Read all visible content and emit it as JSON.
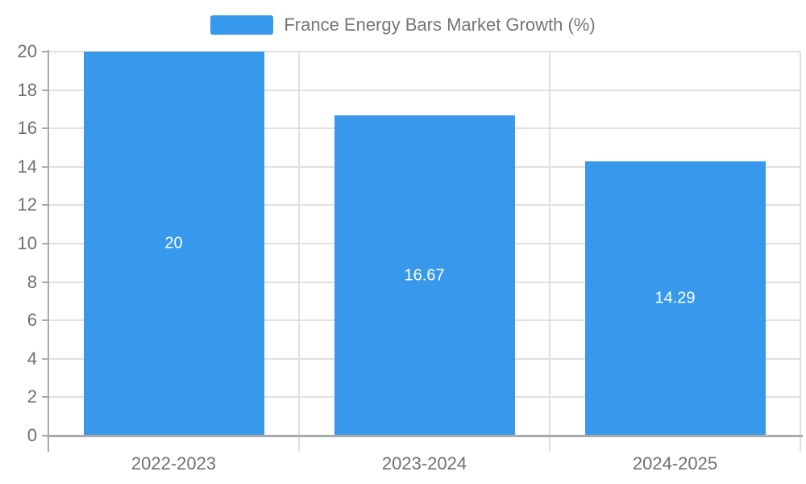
{
  "legend": {
    "label": "France Energy Bars Market Growth (%)"
  },
  "chart_data": {
    "type": "bar",
    "title": "France Energy Bars Market Growth (%)",
    "categories": [
      "2022-2023",
      "2023-2024",
      "2024-2025"
    ],
    "values": [
      20,
      16.67,
      14.29
    ],
    "value_labels": [
      "20",
      "16.67",
      "14.29"
    ],
    "xlabel": "",
    "ylabel": "",
    "ylim": [
      0,
      20
    ],
    "ytick_interval": 2,
    "ytick_labels": [
      "0",
      "2",
      "4",
      "6",
      "8",
      "10",
      "12",
      "14",
      "16",
      "18",
      "20"
    ],
    "grid": true,
    "legend_position": "top-center",
    "label_position": "inside-center",
    "colors": {
      "bar": "#3899ec",
      "bar_label_text": "#ffffff",
      "axis_line": "#aaaaaa",
      "grid_line": "#e0e0e0",
      "tick_label_text": "#707070",
      "legend_text": "#757575",
      "background": "#ffffff"
    }
  }
}
